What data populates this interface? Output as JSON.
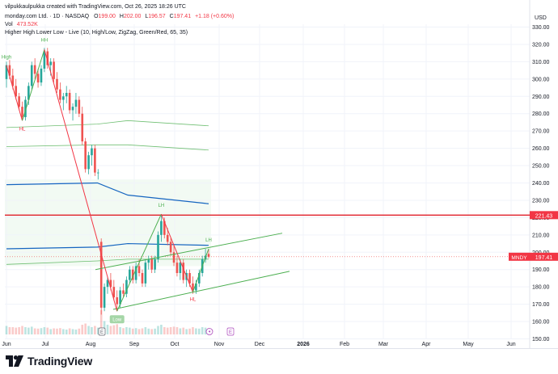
{
  "header": {
    "credit": "vilpukkaulpukka created with TradingView.com, Oct 26, 2025 18:26 UTC",
    "symbol_line": "monday.com Ltd. · 1D · NASDAQ",
    "ohlc": {
      "o_label": "O",
      "o": "199.00",
      "h_label": "H",
      "h": "202.00",
      "l_label": "L",
      "l": "196.57",
      "c_label": "C",
      "c": "197.41",
      "chg": "+1.18 (+0.60%)"
    },
    "vol_label": "Vol",
    "vol_value": "473.52K",
    "indicator": "Higher High Lower Low - Live (10, High/Low, ZigZag, Green/Red, 65, 35)"
  },
  "footer": {
    "brand": "TradingView"
  },
  "colors": {
    "up": "#26a69a",
    "down": "#ef5350",
    "zigzag_up": "#4caf50",
    "zigzag_down": "#f23645",
    "resistance": "#e0202a",
    "channel": "#4caf50",
    "band": "#1565c0",
    "price_badge": "#f23645"
  },
  "chart_data": {
    "type": "candlestick",
    "currency": "USD",
    "y_axis": {
      "range": [
        150,
        330
      ],
      "ticks": [
        "150.00",
        "160.00",
        "170.00",
        "180.00",
        "190.00",
        "200.00",
        "210.00",
        "220.00",
        "230.00",
        "240.00",
        "250.00",
        "260.00",
        "270.00",
        "280.00",
        "290.00",
        "300.00",
        "310.00",
        "320.00",
        "330.00"
      ]
    },
    "x_axis_labels": [
      "Jun",
      "Jul",
      "Aug",
      "Sep",
      "Oct",
      "Nov",
      "Dec",
      "2026",
      "Feb",
      "Mar",
      "Apr",
      "May",
      "Jun"
    ],
    "last_price": {
      "symbol": "MNDY",
      "value": "197.41"
    },
    "resistance_level": {
      "value": "221.43"
    },
    "pivot_labels": [
      "High",
      "HH",
      "HL",
      "LH",
      "Low",
      "LH",
      "HL"
    ],
    "event_markers": [
      "E",
      "E"
    ],
    "zigzag": [
      {
        "date": "Jun",
        "price": 308
      },
      {
        "date": "Jul",
        "price": 276
      },
      {
        "date": "Jul",
        "price": 317
      },
      {
        "date": "Aug",
        "price": 166
      },
      {
        "date": "Sep",
        "price": 222
      },
      {
        "date": "Oct",
        "price": 177
      },
      {
        "date": "Oct",
        "price": 202
      }
    ],
    "trend_channel": {
      "upper": [
        {
          "date": "Aug",
          "price": 190
        },
        {
          "date": "Nov",
          "price": 211
        }
      ],
      "lower": [
        {
          "date": "Aug",
          "price": 167
        },
        {
          "date": "Dec",
          "price": 189
        }
      ]
    },
    "series": [
      {
        "values": [
          {
            "o": 300,
            "h": 310,
            "l": 295,
            "c": 308,
            "v": 0.35
          },
          {
            "o": 308,
            "h": 311,
            "l": 300,
            "c": 302,
            "v": 0.3
          },
          {
            "o": 302,
            "h": 306,
            "l": 294,
            "c": 296,
            "v": 0.3
          },
          {
            "o": 296,
            "h": 300,
            "l": 288,
            "c": 290,
            "v": 0.28
          },
          {
            "o": 290,
            "h": 292,
            "l": 282,
            "c": 284,
            "v": 0.3
          },
          {
            "o": 284,
            "h": 287,
            "l": 276,
            "c": 278,
            "v": 0.35
          },
          {
            "o": 278,
            "h": 290,
            "l": 276,
            "c": 288,
            "v": 0.3
          },
          {
            "o": 288,
            "h": 298,
            "l": 285,
            "c": 296,
            "v": 0.28
          },
          {
            "o": 296,
            "h": 310,
            "l": 294,
            "c": 308,
            "v": 0.32
          },
          {
            "o": 308,
            "h": 312,
            "l": 300,
            "c": 303,
            "v": 0.25
          },
          {
            "o": 303,
            "h": 306,
            "l": 295,
            "c": 298,
            "v": 0.24
          },
          {
            "o": 298,
            "h": 308,
            "l": 296,
            "c": 306,
            "v": 0.26
          },
          {
            "o": 306,
            "h": 318,
            "l": 304,
            "c": 316,
            "v": 0.3
          },
          {
            "o": 316,
            "h": 318,
            "l": 306,
            "c": 308,
            "v": 0.28
          },
          {
            "o": 308,
            "h": 312,
            "l": 302,
            "c": 310,
            "v": 0.22
          },
          {
            "o": 310,
            "h": 312,
            "l": 298,
            "c": 300,
            "v": 0.25
          },
          {
            "o": 300,
            "h": 304,
            "l": 292,
            "c": 294,
            "v": 0.24
          },
          {
            "o": 294,
            "h": 298,
            "l": 286,
            "c": 288,
            "v": 0.26
          },
          {
            "o": 288,
            "h": 292,
            "l": 282,
            "c": 290,
            "v": 0.22
          },
          {
            "o": 290,
            "h": 296,
            "l": 286,
            "c": 292,
            "v": 0.2
          },
          {
            "o": 292,
            "h": 294,
            "l": 280,
            "c": 282,
            "v": 0.25
          },
          {
            "o": 282,
            "h": 286,
            "l": 276,
            "c": 284,
            "v": 0.22
          },
          {
            "o": 284,
            "h": 292,
            "l": 280,
            "c": 288,
            "v": 0.2
          },
          {
            "o": 288,
            "h": 290,
            "l": 278,
            "c": 280,
            "v": 0.24
          },
          {
            "o": 280,
            "h": 284,
            "l": 262,
            "c": 264,
            "v": 0.4
          },
          {
            "o": 264,
            "h": 266,
            "l": 246,
            "c": 248,
            "v": 0.45
          },
          {
            "o": 248,
            "h": 258,
            "l": 245,
            "c": 256,
            "v": 0.35
          },
          {
            "o": 256,
            "h": 262,
            "l": 250,
            "c": 260,
            "v": 0.3
          },
          {
            "o": 260,
            "h": 262,
            "l": 244,
            "c": 246,
            "v": 0.35
          },
          {
            "o": 246,
            "h": 248,
            "l": 242,
            "c": 246,
            "v": 0.28
          },
          {
            "o": 206,
            "h": 208,
            "l": 164,
            "c": 168,
            "v": 1.0
          },
          {
            "o": 168,
            "h": 182,
            "l": 166,
            "c": 180,
            "v": 0.55
          },
          {
            "o": 180,
            "h": 186,
            "l": 176,
            "c": 184,
            "v": 0.4
          },
          {
            "o": 184,
            "h": 188,
            "l": 178,
            "c": 180,
            "v": 0.35
          },
          {
            "o": 180,
            "h": 184,
            "l": 172,
            "c": 174,
            "v": 0.38
          },
          {
            "o": 174,
            "h": 178,
            "l": 166,
            "c": 170,
            "v": 0.42
          },
          {
            "o": 170,
            "h": 180,
            "l": 168,
            "c": 178,
            "v": 0.3
          },
          {
            "o": 178,
            "h": 182,
            "l": 174,
            "c": 176,
            "v": 0.26
          },
          {
            "o": 176,
            "h": 186,
            "l": 174,
            "c": 184,
            "v": 0.3
          },
          {
            "o": 184,
            "h": 192,
            "l": 182,
            "c": 190,
            "v": 0.28
          },
          {
            "o": 190,
            "h": 192,
            "l": 182,
            "c": 184,
            "v": 0.24
          },
          {
            "o": 184,
            "h": 194,
            "l": 182,
            "c": 192,
            "v": 0.26
          },
          {
            "o": 192,
            "h": 196,
            "l": 186,
            "c": 188,
            "v": 0.22
          },
          {
            "o": 188,
            "h": 190,
            "l": 180,
            "c": 182,
            "v": 0.25
          },
          {
            "o": 182,
            "h": 196,
            "l": 180,
            "c": 194,
            "v": 0.3
          },
          {
            "o": 194,
            "h": 198,
            "l": 190,
            "c": 196,
            "v": 0.24
          },
          {
            "o": 196,
            "h": 198,
            "l": 188,
            "c": 190,
            "v": 0.22
          },
          {
            "o": 190,
            "h": 198,
            "l": 188,
            "c": 196,
            "v": 0.24
          },
          {
            "o": 196,
            "h": 212,
            "l": 194,
            "c": 210,
            "v": 0.35
          },
          {
            "o": 210,
            "h": 222,
            "l": 206,
            "c": 218,
            "v": 0.4
          },
          {
            "o": 218,
            "h": 220,
            "l": 208,
            "c": 210,
            "v": 0.3
          },
          {
            "o": 210,
            "h": 214,
            "l": 204,
            "c": 206,
            "v": 0.28
          },
          {
            "o": 206,
            "h": 208,
            "l": 198,
            "c": 200,
            "v": 0.3
          },
          {
            "o": 200,
            "h": 204,
            "l": 192,
            "c": 194,
            "v": 0.32
          },
          {
            "o": 194,
            "h": 198,
            "l": 186,
            "c": 188,
            "v": 0.3
          },
          {
            "o": 188,
            "h": 196,
            "l": 184,
            "c": 194,
            "v": 0.25
          },
          {
            "o": 194,
            "h": 196,
            "l": 182,
            "c": 184,
            "v": 0.28
          },
          {
            "o": 184,
            "h": 190,
            "l": 180,
            "c": 188,
            "v": 0.22
          },
          {
            "o": 188,
            "h": 190,
            "l": 180,
            "c": 182,
            "v": 0.24
          },
          {
            "o": 182,
            "h": 186,
            "l": 176,
            "c": 178,
            "v": 0.3
          },
          {
            "o": 178,
            "h": 184,
            "l": 176,
            "c": 182,
            "v": 0.25
          },
          {
            "o": 182,
            "h": 190,
            "l": 180,
            "c": 188,
            "v": 0.24
          },
          {
            "o": 188,
            "h": 198,
            "l": 186,
            "c": 196,
            "v": 0.3
          },
          {
            "o": 196,
            "h": 202,
            "l": 194,
            "c": 198,
            "v": 0.28
          },
          {
            "o": 199,
            "h": 202,
            "l": 196.57,
            "c": 197.41,
            "v": 0.26
          }
        ]
      }
    ],
    "bands": [
      {
        "color": "band",
        "points": [
          [
            0,
            239
          ],
          [
            0.45,
            240
          ],
          [
            0.6,
            233
          ],
          [
            1,
            228
          ]
        ]
      },
      {
        "color": "band",
        "points": [
          [
            0,
            202
          ],
          [
            0.45,
            203
          ],
          [
            0.6,
            205
          ],
          [
            1,
            204
          ]
        ]
      },
      {
        "color": "zigzag_up",
        "points": [
          [
            0,
            272
          ],
          [
            0.45,
            274
          ],
          [
            0.6,
            276
          ],
          [
            1,
            273
          ]
        ]
      },
      {
        "color": "zigzag_up",
        "points": [
          [
            0,
            261
          ],
          [
            0.45,
            262
          ],
          [
            0.6,
            262
          ],
          [
            1,
            259
          ]
        ]
      },
      {
        "color": "zigzag_up",
        "points": [
          [
            0,
            193
          ],
          [
            0.45,
            195
          ],
          [
            0.6,
            196
          ],
          [
            1,
            196
          ]
        ]
      }
    ]
  }
}
